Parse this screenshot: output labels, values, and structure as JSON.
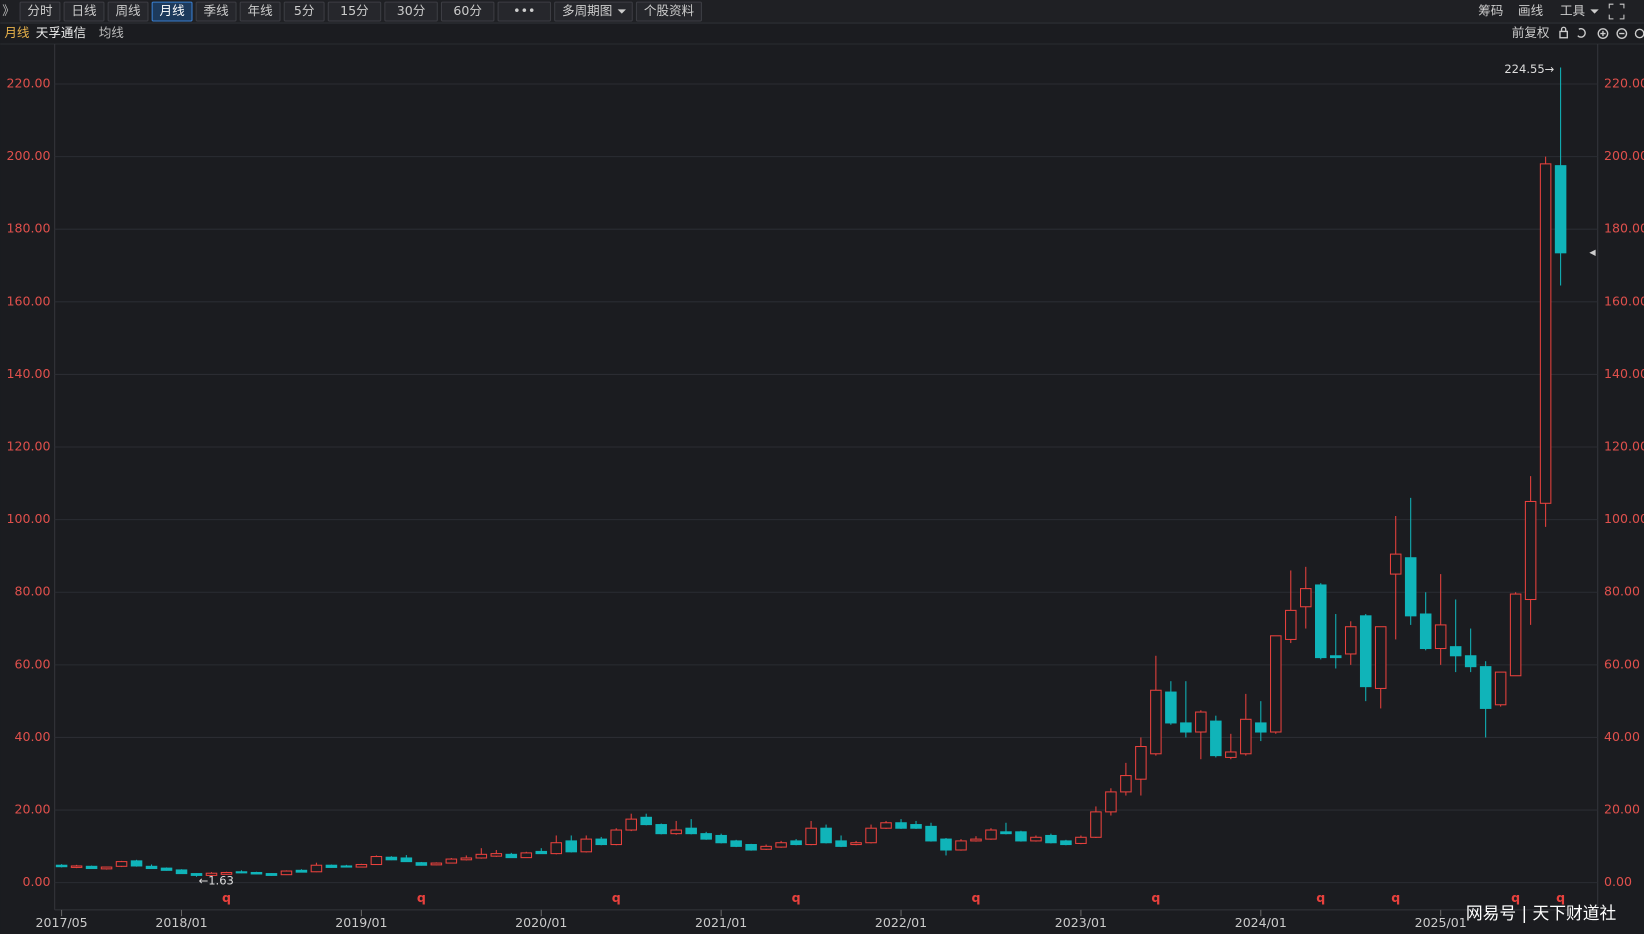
{
  "ui": {
    "collapse_icon": "》",
    "tabs": [
      "分时",
      "日线",
      "周线",
      "月线",
      "季线",
      "年线",
      "5分",
      "15分",
      "30分",
      "60分",
      "•••",
      "多周期图",
      "个股资料"
    ],
    "active_tab_index": 3,
    "right_tools": [
      "筹码",
      "画线",
      "工具"
    ],
    "period": "月线",
    "stock_name": "天孚通信",
    "indicator": "均线",
    "adjust": "前复权",
    "watermark": "网易号 | 天下财道社"
  },
  "chart_data": {
    "type": "candlestick",
    "categories": [
      "2017/05",
      null,
      null,
      null,
      null,
      null,
      null,
      null,
      "2018/01",
      null,
      null,
      null,
      null,
      null,
      null,
      null,
      null,
      null,
      null,
      null,
      "2019/01",
      null,
      null,
      null,
      null,
      null,
      null,
      null,
      null,
      null,
      null,
      null,
      "2020/01",
      null,
      null,
      null,
      null,
      null,
      null,
      null,
      null,
      null,
      null,
      null,
      "2021/01",
      null,
      null,
      null,
      null,
      null,
      null,
      null,
      null,
      null,
      null,
      null,
      "2022/01",
      null,
      null,
      null,
      null,
      null,
      null,
      null,
      null,
      null,
      null,
      null,
      "2023/01",
      null,
      null,
      null,
      null,
      null,
      null,
      null,
      null,
      null,
      null,
      null,
      "2024/01",
      null,
      null,
      null,
      null,
      null,
      null,
      null,
      null,
      null,
      null,
      null,
      "2025/01",
      null,
      null,
      null,
      null,
      null,
      null,
      null,
      null
    ],
    "open": [
      4.8,
      4.2,
      4.5,
      3.8,
      4.5,
      6.0,
      4.5,
      4.0,
      3.5,
      2.5,
      2.0,
      2.3,
      3.0,
      2.8,
      2.5,
      2.2,
      3.4,
      3.0,
      4.8,
      4.6,
      4.3,
      5.0,
      7.0,
      6.8,
      5.5,
      4.9,
      5.4,
      6.3,
      6.8,
      7.3,
      7.8,
      6.9,
      8.6,
      8.0,
      11.5,
      8.5,
      12.0,
      10.5,
      14.5,
      18.0,
      16.0,
      13.5,
      15.0,
      13.5,
      13.0,
      11.5,
      10.5,
      9.2,
      9.8,
      11.5,
      10.5,
      15.0,
      11.5,
      10.5,
      11.0,
      15.0,
      16.5,
      16.0,
      15.5,
      12.0,
      9.0,
      11.5,
      12.0,
      14.0,
      14.0,
      11.5,
      13.0,
      11.5,
      10.8,
      12.5,
      19.5,
      25.0,
      28.5,
      35.5,
      52.5,
      44.0,
      41.5,
      44.5,
      34.5,
      35.5,
      44.0,
      41.5,
      67.0,
      76.0,
      82.0,
      62.5,
      63.0,
      73.5,
      53.5,
      85.0,
      89.5,
      74.0,
      64.5,
      65.0,
      62.5,
      59.5,
      49.0,
      57.0,
      78.0,
      104.5,
      197.5
    ],
    "high": [
      5.1,
      4.9,
      4.7,
      4.4,
      6.0,
      6.3,
      5.0,
      4.2,
      3.7,
      2.6,
      2.9,
      3.0,
      3.4,
      3.0,
      2.6,
      3.4,
      3.7,
      5.5,
      5.0,
      4.9,
      5.2,
      7.5,
      7.3,
      7.6,
      5.7,
      5.6,
      6.8,
      7.5,
      9.5,
      9.0,
      8.2,
      8.5,
      9.5,
      13.0,
      13.0,
      13.0,
      12.6,
      15.0,
      19.0,
      19.0,
      16.3,
      17.0,
      17.5,
      14.0,
      13.5,
      11.8,
      10.7,
      10.5,
      11.5,
      12.0,
      17.0,
      16.0,
      13.0,
      11.5,
      16.0,
      17.0,
      17.5,
      17.0,
      16.5,
      12.3,
      12.0,
      12.8,
      15.0,
      16.5,
      14.3,
      13.0,
      13.5,
      11.8,
      13.0,
      21.0,
      26.0,
      33.0,
      40.0,
      62.5,
      55.5,
      55.5,
      47.5,
      46.0,
      41.0,
      52.0,
      50.0,
      68.0,
      86.0,
      87.0,
      82.5,
      74.0,
      72.0,
      74.0,
      70.5,
      101.0,
      106.0,
      80.0,
      85.0,
      78.0,
      70.0,
      61.0,
      58.0,
      80.0,
      112.0,
      200.0,
      224.55
    ],
    "low": [
      4.2,
      4.0,
      3.8,
      3.6,
      4.3,
      4.4,
      3.8,
      3.3,
      2.4,
      1.63,
      1.9,
      2.2,
      2.6,
      2.3,
      1.9,
      2.1,
      2.8,
      2.9,
      4.1,
      4.2,
      4.2,
      4.9,
      6.2,
      5.7,
      4.7,
      4.8,
      5.3,
      6.1,
      6.6,
      7.1,
      6.8,
      6.8,
      7.9,
      7.8,
      8.3,
      8.3,
      10.3,
      10.3,
      14.2,
      15.8,
      13.3,
      13.2,
      13.3,
      11.8,
      10.8,
      9.8,
      8.8,
      9.0,
      9.6,
      10.3,
      10.3,
      10.8,
      9.8,
      10.3,
      10.8,
      14.8,
      14.8,
      14.8,
      11.3,
      7.5,
      8.8,
      11.3,
      11.8,
      13.3,
      11.3,
      11.3,
      10.8,
      10.3,
      10.6,
      12.3,
      18.5,
      24.0,
      24.0,
      35.0,
      43.5,
      40.0,
      34.0,
      34.5,
      34.0,
      35.0,
      39.0,
      41.0,
      66.0,
      70.0,
      61.5,
      59.0,
      60.0,
      50.0,
      48.0,
      67.0,
      71.0,
      64.0,
      60.0,
      58.0,
      58.0,
      40.0,
      48.5,
      57.0,
      71.0,
      98.0,
      164.5
    ],
    "close": [
      4.4,
      4.6,
      3.9,
      4.3,
      5.8,
      4.6,
      3.9,
      3.4,
      2.5,
      2.0,
      2.6,
      2.8,
      2.7,
      2.4,
      2.0,
      3.2,
      2.9,
      4.8,
      4.2,
      4.3,
      5.0,
      7.2,
      6.3,
      5.8,
      4.8,
      5.4,
      6.5,
      6.8,
      7.8,
      8.0,
      6.9,
      8.2,
      8.0,
      11.0,
      8.5,
      12.0,
      10.5,
      14.5,
      17.5,
      16.0,
      13.5,
      14.5,
      13.5,
      12.0,
      11.0,
      10.0,
      9.0,
      10.0,
      11.0,
      10.5,
      15.0,
      11.0,
      10.0,
      11.0,
      15.0,
      16.5,
      15.0,
      15.0,
      11.5,
      9.0,
      11.5,
      12.0,
      14.5,
      13.5,
      11.5,
      12.5,
      11.0,
      10.5,
      12.5,
      19.5,
      25.0,
      29.5,
      37.5,
      53.0,
      44.0,
      41.5,
      47.0,
      35.0,
      36.0,
      45.0,
      41.5,
      68.0,
      75.0,
      81.0,
      62.0,
      62.0,
      70.5,
      54.0,
      70.5,
      90.5,
      73.5,
      64.5,
      71.0,
      62.5,
      59.5,
      48.0,
      58.0,
      79.5,
      105.0,
      198.0,
      173.5
    ],
    "events": [
      null,
      null,
      null,
      null,
      null,
      null,
      null,
      null,
      null,
      null,
      null,
      "q",
      null,
      null,
      null,
      null,
      null,
      null,
      null,
      null,
      null,
      null,
      null,
      null,
      "q",
      null,
      null,
      null,
      null,
      null,
      null,
      null,
      null,
      null,
      null,
      null,
      null,
      "q",
      null,
      null,
      null,
      null,
      null,
      null,
      null,
      null,
      null,
      null,
      null,
      "q",
      null,
      null,
      null,
      null,
      null,
      null,
      null,
      null,
      null,
      null,
      null,
      "q",
      null,
      null,
      null,
      null,
      null,
      null,
      null,
      null,
      null,
      null,
      null,
      "q",
      null,
      null,
      null,
      null,
      null,
      null,
      null,
      null,
      null,
      null,
      "q",
      null,
      null,
      null,
      null,
      "q",
      null,
      null,
      null,
      null,
      null,
      null,
      null,
      "q",
      null,
      null,
      "q"
    ],
    "annotations": [
      {
        "text": "224.55→",
        "value": 224.55,
        "kind": "high"
      },
      {
        "text": "←1.63",
        "value": 1.63,
        "kind": "low"
      }
    ],
    "ylim": [
      -7.5,
      228.7
    ],
    "yticks": [
      {
        "value": 0,
        "label": "0.00"
      },
      {
        "value": 20,
        "label": "20.00"
      },
      {
        "value": 40,
        "label": "40.00"
      },
      {
        "value": 60,
        "label": "60.00"
      },
      {
        "value": 80,
        "label": "80.00"
      },
      {
        "value": 100,
        "label": "100.00"
      },
      {
        "value": 120,
        "label": "120.00"
      },
      {
        "value": 140,
        "label": "140.00"
      },
      {
        "value": 160,
        "label": "160.00"
      },
      {
        "value": 180,
        "label": "180.00"
      },
      {
        "value": 200,
        "label": "200.00"
      },
      {
        "value": 220,
        "label": "220.00"
      }
    ],
    "grid": true,
    "up_color": "#e8413d",
    "down_color": "#10b4b9"
  }
}
